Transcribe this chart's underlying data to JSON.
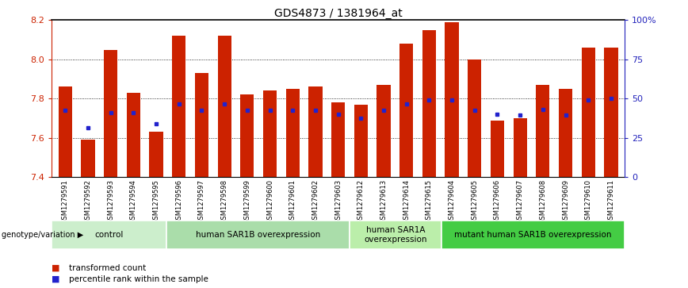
{
  "title": "GDS4873 / 1381964_at",
  "samples": [
    "GSM1279591",
    "GSM1279592",
    "GSM1279593",
    "GSM1279594",
    "GSM1279595",
    "GSM1279596",
    "GSM1279597",
    "GSM1279598",
    "GSM1279599",
    "GSM1279600",
    "GSM1279601",
    "GSM1279602",
    "GSM1279603",
    "GSM1279612",
    "GSM1279613",
    "GSM1279614",
    "GSM1279615",
    "GSM1279604",
    "GSM1279605",
    "GSM1279606",
    "GSM1279607",
    "GSM1279608",
    "GSM1279609",
    "GSM1279610",
    "GSM1279611"
  ],
  "red_values": [
    7.86,
    7.59,
    8.05,
    7.83,
    7.63,
    8.12,
    7.93,
    8.12,
    7.82,
    7.84,
    7.85,
    7.86,
    7.78,
    7.77,
    7.87,
    8.08,
    8.15,
    8.19,
    8.0,
    7.69,
    7.7,
    7.87,
    7.85,
    8.06,
    8.06
  ],
  "blue_values": [
    7.74,
    7.65,
    7.73,
    7.73,
    7.67,
    7.775,
    7.74,
    7.775,
    7.74,
    7.74,
    7.74,
    7.74,
    7.72,
    7.7,
    7.74,
    7.775,
    7.795,
    7.795,
    7.74,
    7.72,
    7.715,
    7.745,
    7.715,
    7.795,
    7.8
  ],
  "ymin": 7.4,
  "ymax": 8.2,
  "bar_color": "#cc2200",
  "blue_color": "#2222cc",
  "groups": [
    {
      "label": "control",
      "start": 0,
      "end": 5,
      "color": "#cceecc"
    },
    {
      "label": "human SAR1B overexpression",
      "start": 5,
      "end": 13,
      "color": "#aaddaa"
    },
    {
      "label": "human SAR1A\noverexpression",
      "start": 13,
      "end": 17,
      "color": "#bbeeaa"
    },
    {
      "label": "mutant human SAR1B overexpression",
      "start": 17,
      "end": 25,
      "color": "#44cc44"
    }
  ],
  "genotype_label": "genotype/variation",
  "legend_red": "transformed count",
  "legend_blue": "percentile rank within the sample",
  "right_yticks": [
    0,
    25,
    50,
    75,
    100
  ],
  "right_yticklabels": [
    "0",
    "25",
    "50",
    "75",
    "100%"
  ],
  "left_yticks": [
    7.4,
    7.6,
    7.8,
    8.0,
    8.2
  ],
  "dotted_lines": [
    7.6,
    7.8,
    8.0
  ]
}
